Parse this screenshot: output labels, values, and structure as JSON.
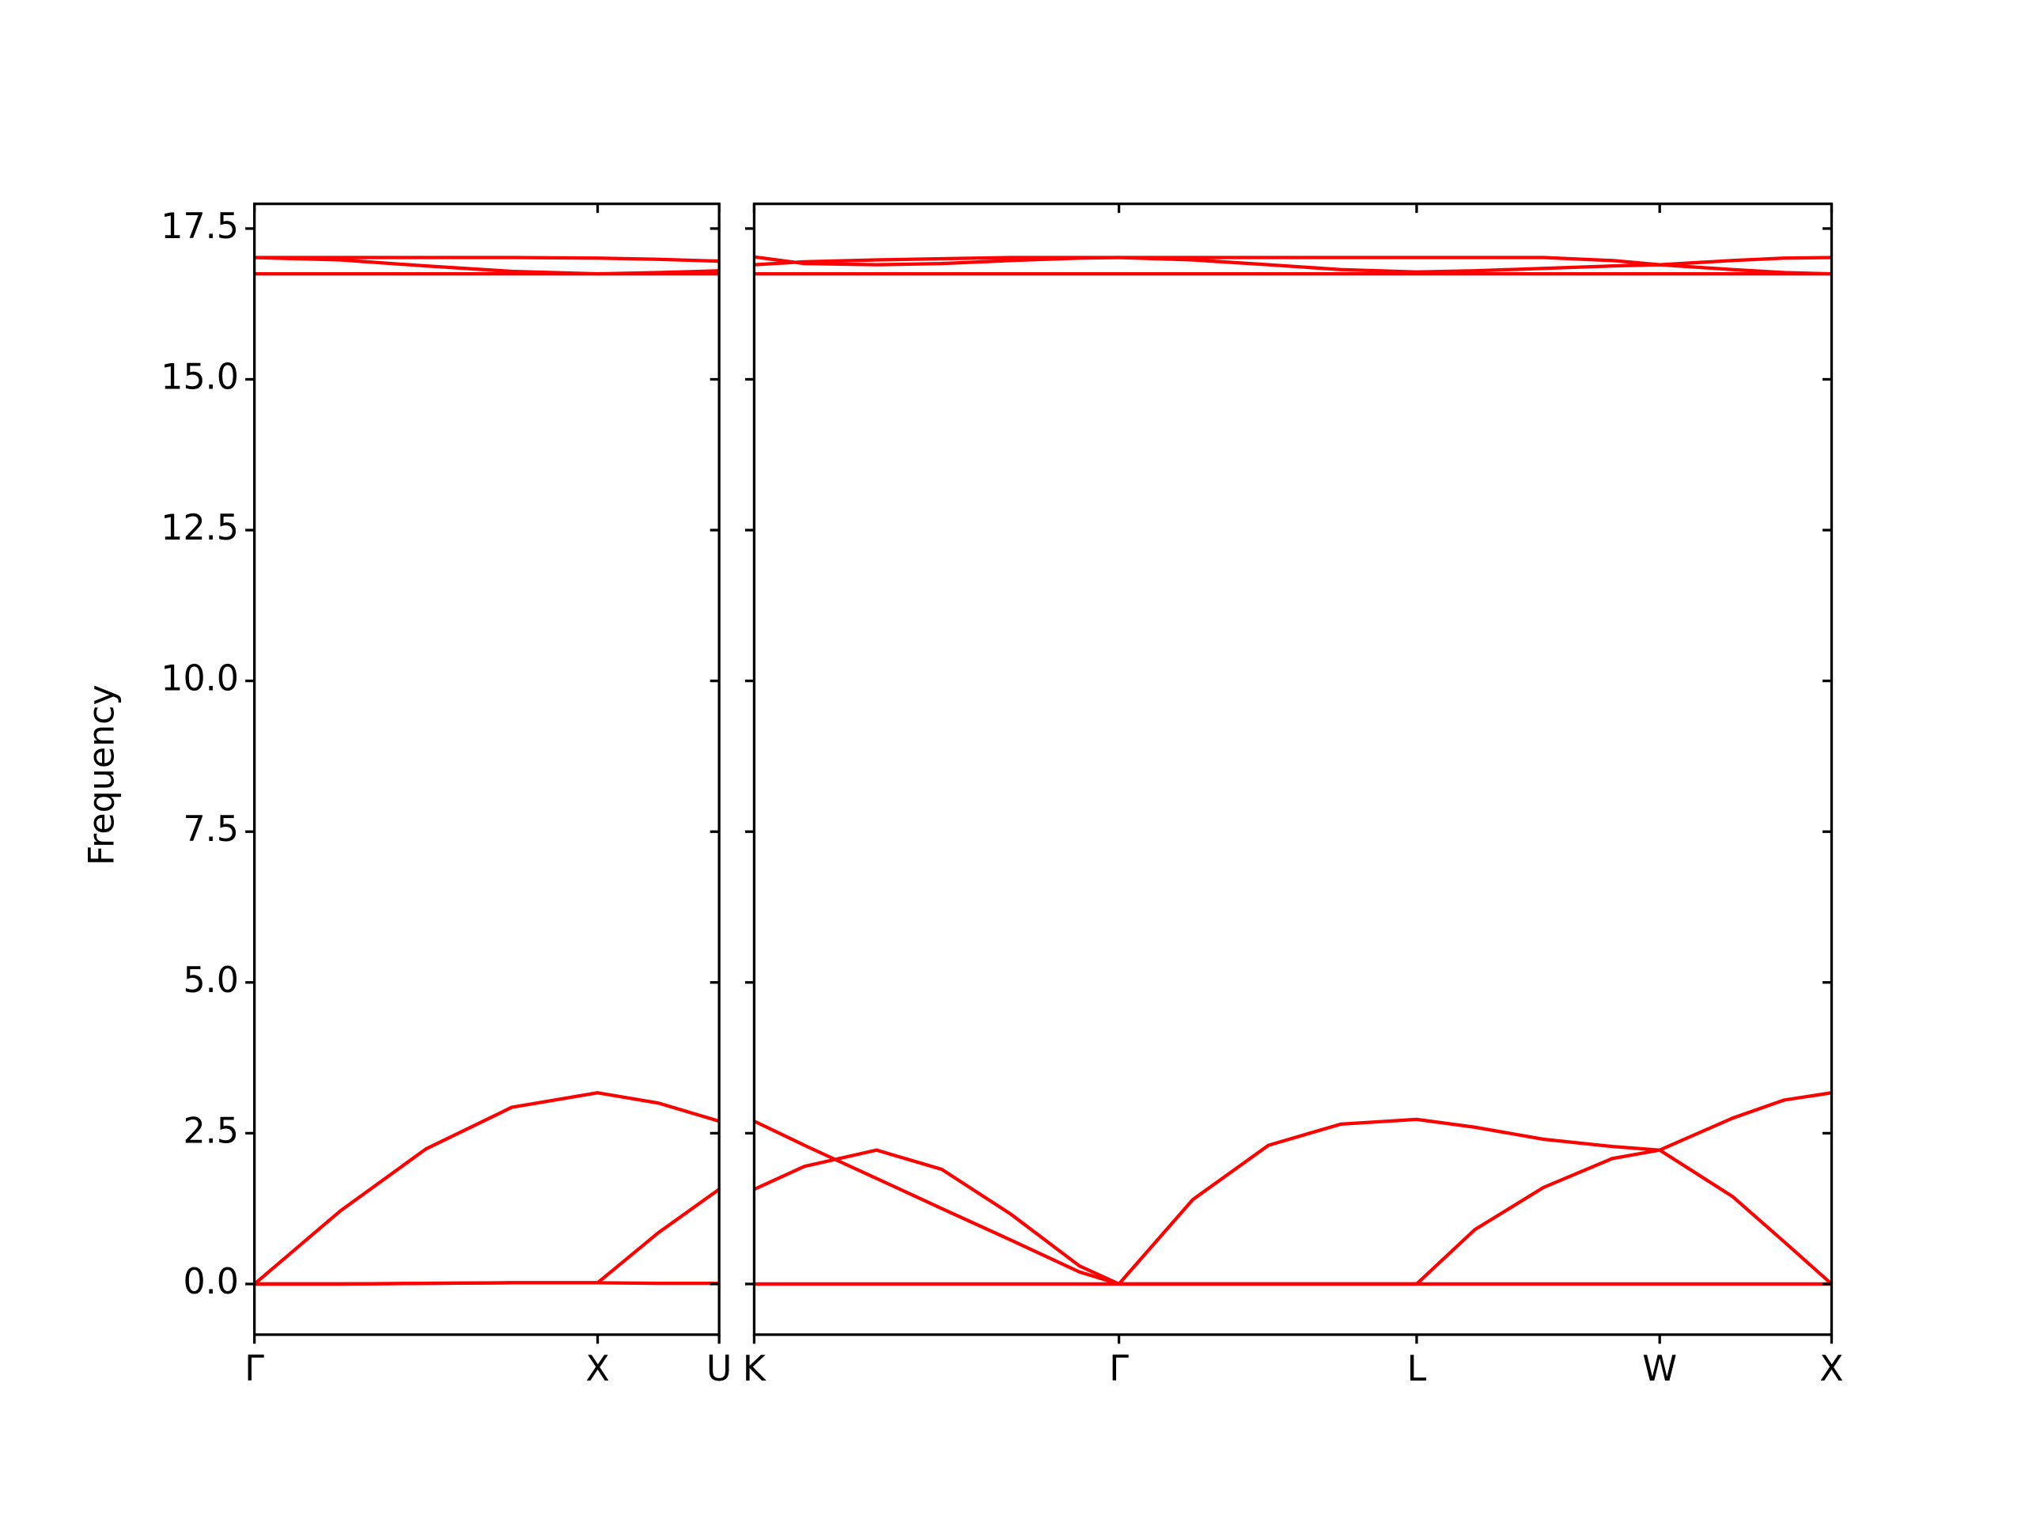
{
  "chart_data": [
    {
      "type": "line",
      "ylabel": "Frequency",
      "x": [
        0,
        0.25,
        0.5,
        0.75,
        1.0,
        1.177,
        1.354
      ],
      "xlim": [
        0,
        1.354
      ],
      "xticks": [
        {
          "value": 0,
          "label": "Γ"
        },
        {
          "value": 1.0,
          "label": "X"
        },
        {
          "value": 1.354,
          "label": "U"
        }
      ],
      "ylim": [
        -0.84,
        17.91
      ],
      "yticks": [
        {
          "value": 0,
          "label": "0.0"
        },
        {
          "value": 2.5,
          "label": "2.5"
        },
        {
          "value": 5,
          "label": "5.0"
        },
        {
          "value": 7.5,
          "label": "7.5"
        },
        {
          "value": 10,
          "label": "10.0"
        },
        {
          "value": 12.5,
          "label": "12.5"
        },
        {
          "value": 15,
          "label": "15.0"
        },
        {
          "value": 17.5,
          "label": "17.5"
        }
      ],
      "color": "#ff0000",
      "series": [
        {
          "values": [
            0,
            0,
            0.01,
            0.02,
            0.02,
            0.01,
            0.01
          ]
        },
        {
          "values": [
            0,
            0,
            0.01,
            0.02,
            0.02,
            0.85,
            1.57
          ]
        },
        {
          "values": [
            0,
            1.21,
            2.24,
            2.93,
            3.17,
            3.0,
            2.7
          ]
        },
        {
          "values": [
            16.75,
            16.75,
            16.75,
            16.75,
            16.75,
            16.75,
            16.75
          ]
        },
        {
          "values": [
            17.02,
            16.98,
            16.88,
            16.79,
            16.75,
            16.77,
            16.8
          ]
        },
        {
          "values": [
            17.02,
            17.02,
            17.02,
            17.02,
            17.01,
            16.99,
            16.96
          ]
        }
      ]
    },
    {
      "type": "line",
      "x": [
        1.354,
        1.5,
        1.71,
        1.9,
        2.1,
        2.3,
        2.415,
        2.63,
        2.85,
        3.06,
        3.281,
        3.45,
        3.65,
        3.85,
        3.988,
        4.2,
        4.35,
        4.488
      ],
      "xlim": [
        1.354,
        4.488
      ],
      "xticks": [
        {
          "value": 1.354,
          "label": "K"
        },
        {
          "value": 2.415,
          "label": "Γ"
        },
        {
          "value": 3.281,
          "label": "L"
        },
        {
          "value": 3.988,
          "label": "W"
        },
        {
          "value": 4.488,
          "label": "X"
        }
      ],
      "ylim": [
        -0.84,
        17.91
      ],
      "color": "#ff0000",
      "series": [
        {
          "values": [
            0,
            0,
            0,
            0,
            0,
            0,
            0,
            0,
            0,
            0,
            0,
            0,
            0,
            0,
            0,
            0,
            0,
            0
          ]
        },
        {
          "values": [
            2.7,
            2.3,
            1.75,
            1.25,
            0.73,
            0.2,
            0,
            0,
            0,
            0,
            0,
            0.9,
            1.6,
            2.08,
            2.22,
            2.75,
            3.05,
            3.17
          ]
        },
        {
          "values": [
            1.57,
            1.95,
            2.22,
            1.9,
            1.16,
            0.3,
            0,
            1.4,
            2.3,
            2.65,
            2.73,
            2.6,
            2.4,
            2.28,
            2.22,
            1.45,
            0.7,
            0
          ]
        },
        {
          "values": [
            16.75,
            16.75,
            16.75,
            16.75,
            16.75,
            16.75,
            16.75,
            16.75,
            16.75,
            16.75,
            16.75,
            16.75,
            16.75,
            16.75,
            16.75,
            16.75,
            16.75,
            16.75
          ]
        },
        {
          "values": [
            16.9,
            16.95,
            16.98,
            17.0,
            17.02,
            17.02,
            17.02,
            16.98,
            16.9,
            16.82,
            16.78,
            16.8,
            16.84,
            16.88,
            16.9,
            16.82,
            16.77,
            16.75
          ]
        },
        {
          "values": [
            17.03,
            16.92,
            16.9,
            16.92,
            16.97,
            17.01,
            17.02,
            17.02,
            17.02,
            17.02,
            17.02,
            17.02,
            17.02,
            16.97,
            16.9,
            16.97,
            17.01,
            17.02
          ]
        }
      ]
    }
  ]
}
